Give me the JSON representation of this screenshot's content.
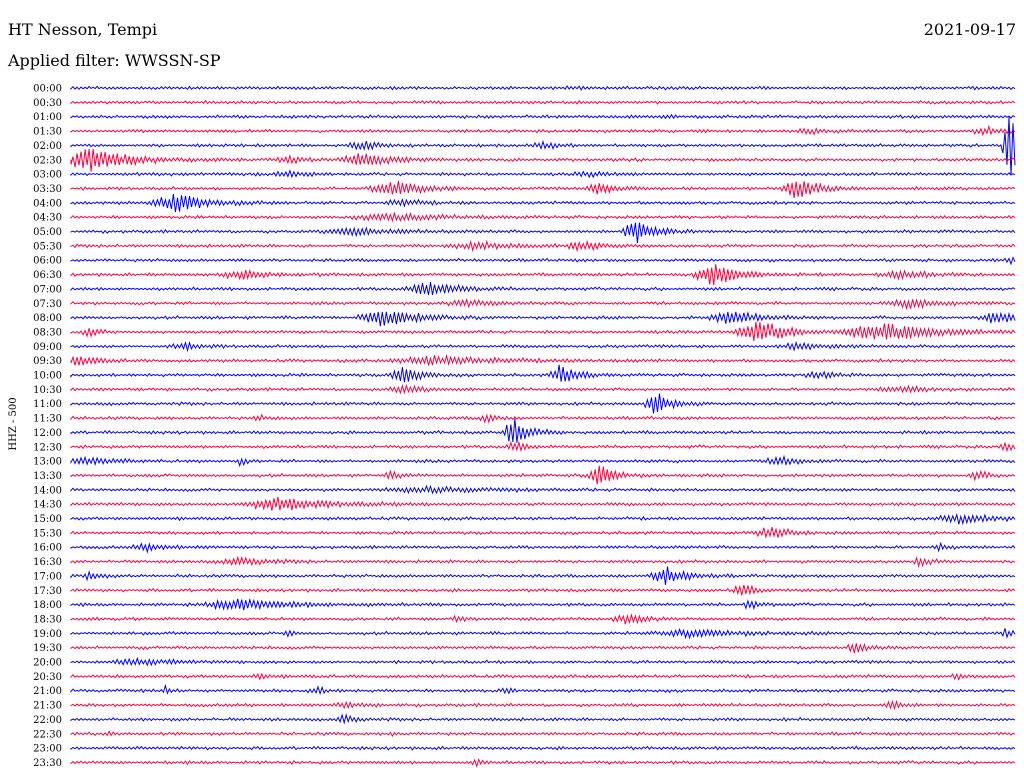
{
  "header": {
    "station": "HT Nesson, Tempi",
    "date": "2021-09-17",
    "filter": "Applied filter: WWSSN-SP"
  },
  "chart_data": {
    "type": "line",
    "title": "HT Nesson, Tempi",
    "subtitle": "Applied filter: WWSSN-SP",
    "ylabel": "HHZ - 500",
    "xlabel": "",
    "grid": false,
    "series_colors": [
      "#0000ff",
      "#ff0040"
    ],
    "rows": [
      {
        "time": "00:00",
        "color": "#0000ff",
        "events": [
          {
            "x": 0.53,
            "amp": 0.15,
            "width": 0.012
          }
        ]
      },
      {
        "time": "00:30",
        "color": "#ff0040",
        "events": []
      },
      {
        "time": "01:00",
        "color": "#0000ff",
        "events": [
          {
            "x": 0.63,
            "amp": 0.15,
            "width": 0.01
          }
        ]
      },
      {
        "time": "01:30",
        "color": "#ff0040",
        "events": [
          {
            "x": 0.78,
            "amp": 0.2,
            "width": 0.02
          },
          {
            "x": 0.97,
            "amp": 0.3,
            "width": 0.02
          }
        ]
      },
      {
        "time": "02:00",
        "color": "#0000ff",
        "events": [
          {
            "x": 0.31,
            "amp": 0.35,
            "width": 0.02
          },
          {
            "x": 0.5,
            "amp": 0.25,
            "width": 0.02
          },
          {
            "x": 0.995,
            "amp": 3.2,
            "width": 0.01
          }
        ]
      },
      {
        "time": "02:30",
        "color": "#ff0040",
        "events": [
          {
            "x": 0.02,
            "amp": 1.0,
            "width": 0.04
          },
          {
            "x": 0.31,
            "amp": 0.6,
            "width": 0.03
          },
          {
            "x": 0.23,
            "amp": 0.3,
            "width": 0.02
          }
        ]
      },
      {
        "time": "03:00",
        "color": "#0000ff",
        "events": [
          {
            "x": 0.23,
            "amp": 0.25,
            "width": 0.02
          },
          {
            "x": 0.55,
            "amp": 0.2,
            "width": 0.02
          }
        ]
      },
      {
        "time": "03:30",
        "color": "#ff0040",
        "events": [
          {
            "x": 0.34,
            "amp": 0.7,
            "width": 0.03
          },
          {
            "x": 0.56,
            "amp": 0.5,
            "width": 0.02
          },
          {
            "x": 0.77,
            "amp": 1.0,
            "width": 0.02
          }
        ]
      },
      {
        "time": "04:00",
        "color": "#0000ff",
        "events": [
          {
            "x": 0.11,
            "amp": 0.8,
            "width": 0.03
          },
          {
            "x": 0.35,
            "amp": 0.3,
            "width": 0.02
          }
        ]
      },
      {
        "time": "04:30",
        "color": "#ff0040",
        "events": [
          {
            "x": 0.34,
            "amp": 0.3,
            "width": 0.05
          }
        ]
      },
      {
        "time": "05:00",
        "color": "#0000ff",
        "events": [
          {
            "x": 0.6,
            "amp": 1.0,
            "width": 0.02
          },
          {
            "x": 0.3,
            "amp": 0.3,
            "width": 0.04
          }
        ]
      },
      {
        "time": "05:30",
        "color": "#ff0040",
        "events": [
          {
            "x": 0.54,
            "amp": 0.4,
            "width": 0.02
          },
          {
            "x": 0.43,
            "amp": 0.3,
            "width": 0.04
          }
        ]
      },
      {
        "time": "06:00",
        "color": "#0000ff",
        "events": [
          {
            "x": 0.995,
            "amp": 0.4,
            "width": 0.005
          }
        ]
      },
      {
        "time": "06:30",
        "color": "#ff0040",
        "events": [
          {
            "x": 0.68,
            "amp": 1.0,
            "width": 0.025
          },
          {
            "x": 0.18,
            "amp": 0.35,
            "width": 0.03
          },
          {
            "x": 0.88,
            "amp": 0.3,
            "width": 0.03
          }
        ]
      },
      {
        "time": "07:00",
        "color": "#0000ff",
        "events": [
          {
            "x": 0.38,
            "amp": 0.6,
            "width": 0.03
          }
        ]
      },
      {
        "time": "07:30",
        "color": "#ff0040",
        "events": [
          {
            "x": 0.42,
            "amp": 0.3,
            "width": 0.03
          },
          {
            "x": 0.89,
            "amp": 0.4,
            "width": 0.03
          }
        ]
      },
      {
        "time": "08:00",
        "color": "#0000ff",
        "events": [
          {
            "x": 0.33,
            "amp": 0.9,
            "width": 0.03
          },
          {
            "x": 0.7,
            "amp": 0.6,
            "width": 0.03
          },
          {
            "x": 0.98,
            "amp": 0.6,
            "width": 0.02
          }
        ]
      },
      {
        "time": "08:30",
        "color": "#ff0040",
        "events": [
          {
            "x": 0.73,
            "amp": 1.0,
            "width": 0.03
          },
          {
            "x": 0.86,
            "amp": 0.8,
            "width": 0.05
          },
          {
            "x": 0.02,
            "amp": 0.4,
            "width": 0.01
          }
        ]
      },
      {
        "time": "09:00",
        "color": "#0000ff",
        "events": [
          {
            "x": 0.12,
            "amp": 0.3,
            "width": 0.02
          },
          {
            "x": 0.77,
            "amp": 0.25,
            "width": 0.03
          }
        ]
      },
      {
        "time": "09:30",
        "color": "#ff0040",
        "events": [
          {
            "x": 0.39,
            "amp": 0.4,
            "width": 0.06
          },
          {
            "x": 0.01,
            "amp": 0.35,
            "width": 0.02
          }
        ]
      },
      {
        "time": "10:00",
        "color": "#0000ff",
        "events": [
          {
            "x": 0.35,
            "amp": 1.0,
            "width": 0.015
          },
          {
            "x": 0.52,
            "amp": 1.0,
            "width": 0.015
          },
          {
            "x": 0.79,
            "amp": 0.3,
            "width": 0.02
          }
        ]
      },
      {
        "time": "10:30",
        "color": "#ff0040",
        "events": [
          {
            "x": 0.35,
            "amp": 0.35,
            "width": 0.02
          },
          {
            "x": 0.88,
            "amp": 0.25,
            "width": 0.03
          }
        ]
      },
      {
        "time": "11:00",
        "color": "#0000ff",
        "events": [
          {
            "x": 0.62,
            "amp": 1.0,
            "width": 0.015
          }
        ]
      },
      {
        "time": "11:30",
        "color": "#ff0040",
        "events": [
          {
            "x": 0.44,
            "amp": 0.4,
            "width": 0.01
          },
          {
            "x": 0.2,
            "amp": 0.2,
            "width": 0.01
          }
        ]
      },
      {
        "time": "12:00",
        "color": "#0000ff",
        "events": [
          {
            "x": 0.47,
            "amp": 1.3,
            "width": 0.015
          }
        ]
      },
      {
        "time": "12:30",
        "color": "#ff0040",
        "events": [
          {
            "x": 0.47,
            "amp": 0.5,
            "width": 0.01
          },
          {
            "x": 0.99,
            "amp": 0.3,
            "width": 0.01
          }
        ]
      },
      {
        "time": "13:00",
        "color": "#0000ff",
        "events": [
          {
            "x": 0.02,
            "amp": 0.3,
            "width": 0.03
          },
          {
            "x": 0.75,
            "amp": 0.5,
            "width": 0.015
          },
          {
            "x": 0.18,
            "amp": 0.4,
            "width": 0.005
          }
        ]
      },
      {
        "time": "13:30",
        "color": "#ff0040",
        "events": [
          {
            "x": 0.56,
            "amp": 1.0,
            "width": 0.015
          },
          {
            "x": 0.96,
            "amp": 0.4,
            "width": 0.01
          },
          {
            "x": 0.34,
            "amp": 0.3,
            "width": 0.01
          }
        ]
      },
      {
        "time": "14:00",
        "color": "#0000ff",
        "events": [
          {
            "x": 0.38,
            "amp": 0.25,
            "width": 0.06
          }
        ]
      },
      {
        "time": "14:30",
        "color": "#ff0040",
        "events": [
          {
            "x": 0.22,
            "amp": 0.6,
            "width": 0.05
          }
        ]
      },
      {
        "time": "15:00",
        "color": "#0000ff",
        "events": [
          {
            "x": 0.94,
            "amp": 0.4,
            "width": 0.03
          }
        ]
      },
      {
        "time": "15:30",
        "color": "#ff0040",
        "events": [
          {
            "x": 0.74,
            "amp": 0.5,
            "width": 0.02
          }
        ]
      },
      {
        "time": "16:00",
        "color": "#0000ff",
        "events": [
          {
            "x": 0.08,
            "amp": 0.3,
            "width": 0.02
          },
          {
            "x": 0.92,
            "amp": 0.3,
            "width": 0.01
          }
        ]
      },
      {
        "time": "16:30",
        "color": "#ff0040",
        "events": [
          {
            "x": 0.18,
            "amp": 0.3,
            "width": 0.03
          },
          {
            "x": 0.9,
            "amp": 0.4,
            "width": 0.01
          }
        ]
      },
      {
        "time": "17:00",
        "color": "#0000ff",
        "events": [
          {
            "x": 0.63,
            "amp": 0.8,
            "width": 0.02
          },
          {
            "x": 0.02,
            "amp": 0.4,
            "width": 0.01
          }
        ]
      },
      {
        "time": "17:30",
        "color": "#ff0040",
        "events": [
          {
            "x": 0.71,
            "amp": 0.7,
            "width": 0.01
          }
        ]
      },
      {
        "time": "18:00",
        "color": "#0000ff",
        "events": [
          {
            "x": 0.18,
            "amp": 0.5,
            "width": 0.05
          },
          {
            "x": 0.72,
            "amp": 0.4,
            "width": 0.01
          }
        ]
      },
      {
        "time": "18:30",
        "color": "#ff0040",
        "events": [
          {
            "x": 0.59,
            "amp": 0.4,
            "width": 0.02
          },
          {
            "x": 0.41,
            "amp": 0.3,
            "width": 0.01
          }
        ]
      },
      {
        "time": "19:00",
        "color": "#0000ff",
        "events": [
          {
            "x": 0.66,
            "amp": 0.3,
            "width": 0.05
          },
          {
            "x": 0.99,
            "amp": 0.6,
            "width": 0.005
          },
          {
            "x": 0.23,
            "amp": 0.3,
            "width": 0.005
          }
        ]
      },
      {
        "time": "19:30",
        "color": "#ff0040",
        "events": [
          {
            "x": 0.83,
            "amp": 0.5,
            "width": 0.01
          }
        ]
      },
      {
        "time": "20:00",
        "color": "#0000ff",
        "events": [
          {
            "x": 0.07,
            "amp": 0.3,
            "width": 0.03
          }
        ]
      },
      {
        "time": "20:30",
        "color": "#ff0040",
        "events": [
          {
            "x": 0.2,
            "amp": 0.2,
            "width": 0.01
          },
          {
            "x": 0.94,
            "amp": 0.2,
            "width": 0.01
          }
        ]
      },
      {
        "time": "21:00",
        "color": "#0000ff",
        "events": [
          {
            "x": 0.26,
            "amp": 0.35,
            "width": 0.01
          },
          {
            "x": 0.1,
            "amp": 0.3,
            "width": 0.005
          },
          {
            "x": 0.46,
            "amp": 0.3,
            "width": 0.005
          }
        ]
      },
      {
        "time": "21:30",
        "color": "#ff0040",
        "events": [
          {
            "x": 0.87,
            "amp": 0.4,
            "width": 0.01
          },
          {
            "x": 0.29,
            "amp": 0.2,
            "width": 0.02
          }
        ]
      },
      {
        "time": "22:00",
        "color": "#0000ff",
        "events": [
          {
            "x": 0.29,
            "amp": 0.4,
            "width": 0.01
          }
        ]
      },
      {
        "time": "22:30",
        "color": "#ff0040",
        "events": [
          {
            "x": 0.04,
            "amp": 0.15,
            "width": 0.005
          },
          {
            "x": 0.34,
            "amp": 0.15,
            "width": 0.005
          }
        ]
      },
      {
        "time": "23:00",
        "color": "#0000ff",
        "events": []
      },
      {
        "time": "23:30",
        "color": "#ff0040",
        "events": [
          {
            "x": 0.43,
            "amp": 0.35,
            "width": 0.005
          }
        ]
      }
    ]
  }
}
